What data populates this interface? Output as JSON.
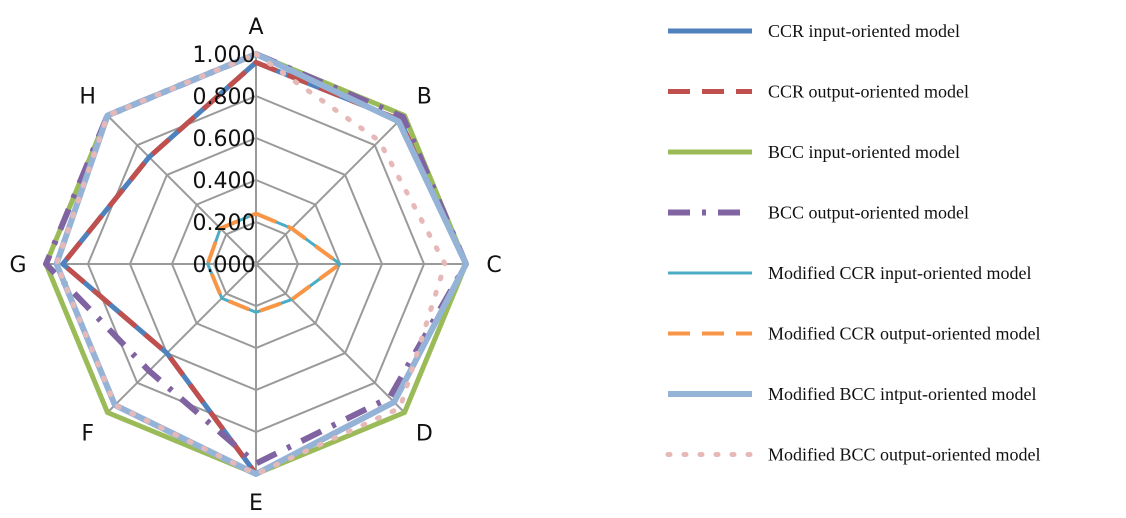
{
  "chart_data": {
    "type": "radar",
    "categories": [
      "A",
      "B",
      "C",
      "D",
      "E",
      "F",
      "G",
      "H"
    ],
    "rlim": [
      0,
      1
    ],
    "ticks": [
      "0.000",
      "0.200",
      "0.400",
      "0.600",
      "0.800",
      "1.000"
    ],
    "grid": true,
    "legend_position": "right",
    "series": [
      {
        "name": "CCR input-oriented model",
        "color": "#4f81bd",
        "dash": "solid",
        "width": 5,
        "values": [
          0.96,
          0.97,
          1.0,
          0.93,
          1.0,
          0.6,
          0.92,
          0.72
        ]
      },
      {
        "name": "CCR output-oriented model",
        "color": "#c0504d",
        "dash": "dash",
        "width": 5,
        "values": [
          0.96,
          0.97,
          1.0,
          0.93,
          1.0,
          0.6,
          0.92,
          0.72
        ]
      },
      {
        "name": "BCC input-oriented model",
        "color": "#9bbb59",
        "dash": "solid",
        "width": 5,
        "values": [
          1.0,
          1.0,
          1.0,
          1.0,
          1.0,
          1.0,
          1.0,
          1.0
        ]
      },
      {
        "name": "BCC output-oriented model",
        "color": "#8064a2",
        "dash": "dashdot",
        "width": 6,
        "values": [
          1.0,
          0.99,
          1.0,
          0.9,
          0.95,
          0.72,
          1.0,
          1.0
        ]
      },
      {
        "name": "Modified CCR input-oriented model",
        "color": "#4bacc6",
        "dash": "solid",
        "width": 3,
        "values": [
          0.24,
          0.24,
          0.4,
          0.24,
          0.23,
          0.23,
          0.23,
          0.24
        ]
      },
      {
        "name": "Modified CCR output-oriented model",
        "color": "#f79646",
        "dash": "dash",
        "width": 4,
        "values": [
          0.24,
          0.24,
          0.4,
          0.24,
          0.23,
          0.23,
          0.23,
          0.24
        ]
      },
      {
        "name": "Modified BCC intput-oriented model",
        "color": "#95b3d7",
        "dash": "solid",
        "width": 6,
        "values": [
          1.0,
          0.96,
          1.0,
          0.93,
          1.0,
          0.95,
          0.95,
          1.0
        ]
      },
      {
        "name": "Modified BCC output-oriented model",
        "color": "#e6b9b8",
        "dash": "dot",
        "width": 5,
        "values": [
          1.0,
          0.83,
          0.9,
          0.97,
          1.0,
          0.95,
          0.95,
          1.0
        ]
      }
    ]
  },
  "legend": {
    "items": [
      {
        "label": "CCR input-oriented model"
      },
      {
        "label": "CCR output-oriented model"
      },
      {
        "label": "BCC input-oriented model"
      },
      {
        "label": "BCC output-oriented model"
      },
      {
        "label": "Modified CCR input-oriented model"
      },
      {
        "label": "Modified CCR output-oriented model"
      },
      {
        "label": "Modified BCC intput-oriented model"
      },
      {
        "label": "Modified BCC output-oriented model"
      }
    ]
  }
}
